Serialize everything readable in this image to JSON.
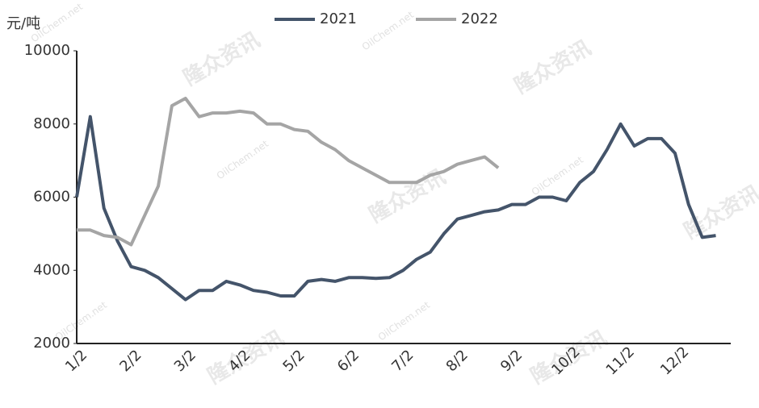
{
  "chart_data": {
    "type": "line",
    "y_unit": "元/吨",
    "watermarks": [
      "隆众资讯",
      "OilChem.net"
    ],
    "categories": [
      "1/2",
      null,
      null,
      null,
      "2/2",
      null,
      null,
      null,
      "3/2",
      null,
      null,
      null,
      "4/2",
      null,
      null,
      null,
      "5/2",
      null,
      null,
      null,
      "6/2",
      null,
      null,
      null,
      "7/2",
      null,
      null,
      null,
      "8/2",
      null,
      null,
      null,
      "9/2",
      null,
      null,
      null,
      "10/2",
      null,
      null,
      null,
      "11/2",
      null,
      null,
      null,
      "12/2",
      null,
      null,
      null
    ],
    "series": [
      {
        "name": "2021",
        "color": "#44546a",
        "values": [
          6000,
          8200,
          5700,
          4800,
          4100,
          4000,
          3800,
          3500,
          3200,
          3450,
          3450,
          3700,
          3600,
          3450,
          3400,
          3300,
          3300,
          3700,
          3750,
          3700,
          3800,
          3800,
          3780,
          3800,
          4000,
          4300,
          4500,
          5000,
          5400,
          5500,
          5600,
          5650,
          5800,
          5800,
          6000,
          6000,
          5900,
          6400,
          6700,
          7300,
          8000,
          7400,
          7600,
          7600,
          7200,
          5800,
          4900,
          4950
        ]
      },
      {
        "name": "2022",
        "color": "#a5a5a5",
        "values": [
          5100,
          5100,
          4950,
          4900,
          4700,
          5500,
          6300,
          8500,
          8700,
          8200,
          8300,
          8300,
          8350,
          8300,
          8000,
          8000,
          7850,
          7800,
          7500,
          7300,
          7000,
          6800,
          6600,
          6400,
          6400,
          6400,
          6600,
          6700,
          6900,
          7000,
          7100,
          6800,
          null,
          null,
          null,
          null,
          null,
          null,
          null,
          null,
          null,
          null,
          null,
          null,
          null,
          null,
          null,
          null
        ]
      }
    ],
    "ylim": [
      2000,
      10000
    ],
    "yticks": [
      2000,
      4000,
      6000,
      8000,
      10000
    ],
    "grid": false
  }
}
